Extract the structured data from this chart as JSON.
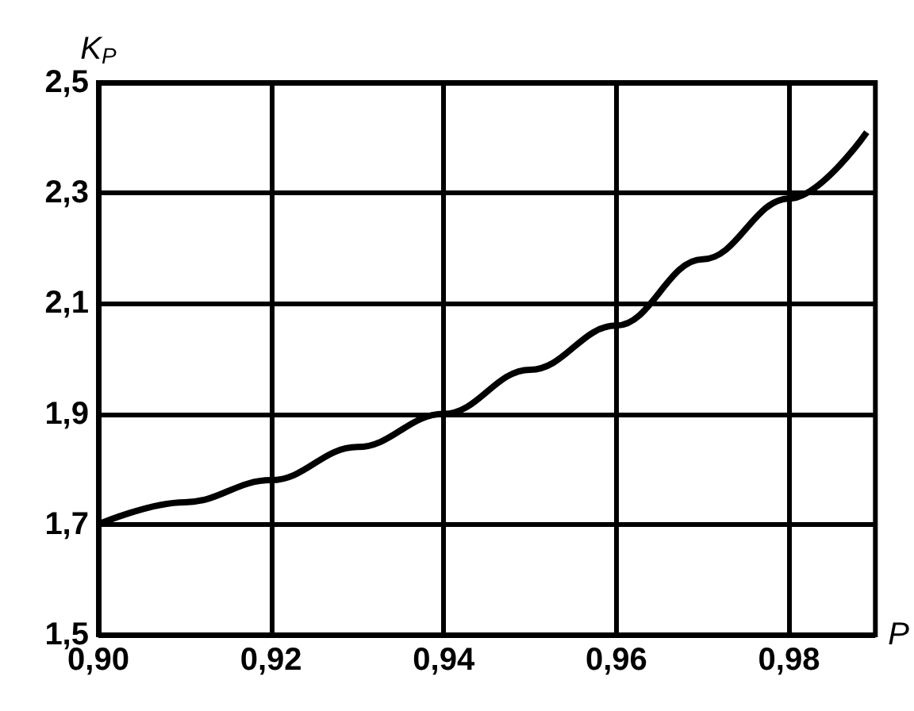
{
  "chart_data": {
    "type": "line",
    "xlabel": "P",
    "ylabel": "K$_{P}$",
    "x": [
      0.9,
      0.91,
      0.92,
      0.93,
      0.94,
      0.95,
      0.96,
      0.97,
      0.98,
      0.989
    ],
    "values": [
      1.7,
      1.74,
      1.78,
      1.84,
      1.9,
      1.98,
      2.06,
      2.18,
      2.29,
      2.41
    ],
    "color": "#000000",
    "marker": "none",
    "line_style": "solid",
    "grid": true,
    "xlim": [
      0.9,
      0.99
    ],
    "xticks": [
      {
        "value": 0.9,
        "label": "0,90"
      },
      {
        "value": 0.92,
        "label": "0,92"
      },
      {
        "value": 0.94,
        "label": "0,94"
      },
      {
        "value": 0.96,
        "label": "0,96"
      },
      {
        "value": 0.98,
        "label": "0,98"
      }
    ],
    "ylim": [
      1.5,
      2.5
    ],
    "yticks": [
      {
        "value": 1.5,
        "label": "1,5"
      },
      {
        "value": 1.7,
        "label": "1,7"
      },
      {
        "value": 1.9,
        "label": "1,9"
      },
      {
        "value": 2.1,
        "label": "2,1"
      },
      {
        "value": 2.3,
        "label": "2,3"
      },
      {
        "value": 2.5,
        "label": "2,5"
      }
    ]
  }
}
